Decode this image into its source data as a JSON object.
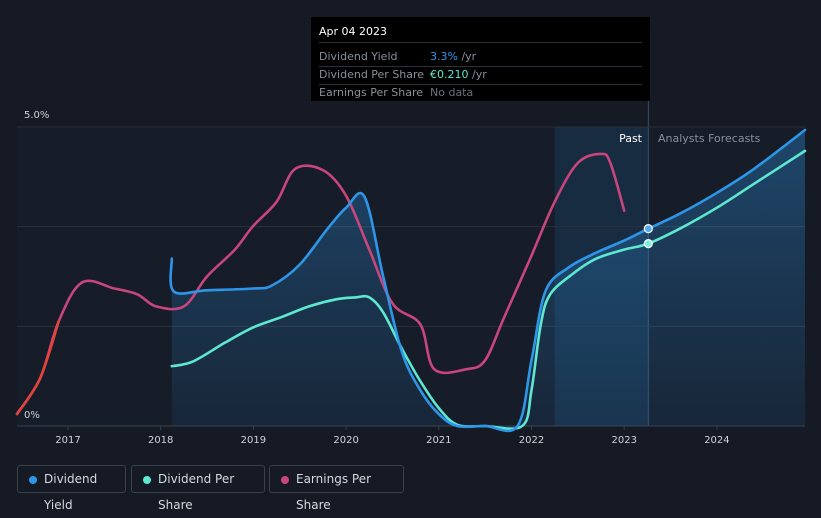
{
  "tooltip": {
    "date": "Apr 04 2023",
    "rows": [
      {
        "label": "Dividend Yield",
        "value": "3.3%",
        "unit": " /yr",
        "color": "#2e96e8"
      },
      {
        "label": "Dividend Per Share",
        "value": "€0.210",
        "unit": " /yr",
        "color": "#5ee8d0"
      },
      {
        "label": "Earnings Per Share",
        "value": "No data",
        "unit": "",
        "color": "#6a717c"
      }
    ]
  },
  "regions": {
    "past_label": "Past",
    "forecast_label": "Analysts Forecasts"
  },
  "legend": [
    {
      "label": "Dividend Yield",
      "color": "#2e96e8"
    },
    {
      "label": "Dividend Per Share",
      "color": "#5ee8d0"
    },
    {
      "label": "Earnings Per Share",
      "color": "#c8467c"
    }
  ],
  "chart_data": {
    "type": "line",
    "xlim": [
      2016.45,
      2024.95
    ],
    "ylim": [
      0,
      5
    ],
    "y_tick_labels": [
      "5.0%",
      "0%"
    ],
    "x_ticks": [
      2017,
      2018,
      2019,
      2020,
      2021,
      2022,
      2023,
      2024
    ],
    "x_tick_labels": [
      "2017",
      "2018",
      "2019",
      "2020",
      "2021",
      "2022",
      "2023",
      "2024"
    ],
    "past_region": [
      2022.25,
      2023.26
    ],
    "tooltip_x": 2023.26,
    "series": [
      {
        "name": "Dividend Yield",
        "color": "#2e96e8",
        "filled": true,
        "points": [
          [
            2018.12,
            2.8
          ],
          [
            2018.14,
            2.25
          ],
          [
            2018.5,
            2.27
          ],
          [
            2019.0,
            2.3
          ],
          [
            2019.2,
            2.35
          ],
          [
            2019.5,
            2.7
          ],
          [
            2019.8,
            3.3
          ],
          [
            2020.0,
            3.65
          ],
          [
            2020.2,
            3.83
          ],
          [
            2020.4,
            2.5
          ],
          [
            2020.6,
            1.25
          ],
          [
            2020.8,
            0.6
          ],
          [
            2021.0,
            0.2
          ],
          [
            2021.2,
            0.0
          ],
          [
            2021.5,
            0.0
          ],
          [
            2021.85,
            0.0
          ],
          [
            2022.0,
            1.1
          ],
          [
            2022.15,
            2.25
          ],
          [
            2022.4,
            2.65
          ],
          [
            2022.7,
            2.9
          ],
          [
            2023.0,
            3.1
          ],
          [
            2023.26,
            3.3
          ],
          [
            2023.6,
            3.55
          ],
          [
            2024.0,
            3.9
          ],
          [
            2024.4,
            4.3
          ],
          [
            2024.95,
            4.95
          ]
        ]
      },
      {
        "name": "Dividend Per Share",
        "color": "#5ee8d0",
        "filled": false,
        "points": [
          [
            2018.12,
            1.0
          ],
          [
            2018.35,
            1.08
          ],
          [
            2018.7,
            1.4
          ],
          [
            2019.0,
            1.65
          ],
          [
            2019.3,
            1.82
          ],
          [
            2019.6,
            2.0
          ],
          [
            2019.9,
            2.12
          ],
          [
            2020.1,
            2.15
          ],
          [
            2020.25,
            2.15
          ],
          [
            2020.4,
            1.9
          ],
          [
            2020.6,
            1.3
          ],
          [
            2020.8,
            0.75
          ],
          [
            2021.0,
            0.3
          ],
          [
            2021.2,
            0.02
          ],
          [
            2021.5,
            0.0
          ],
          [
            2021.9,
            0.0
          ],
          [
            2022.0,
            0.6
          ],
          [
            2022.1,
            1.7
          ],
          [
            2022.2,
            2.2
          ],
          [
            2022.45,
            2.55
          ],
          [
            2022.7,
            2.8
          ],
          [
            2023.0,
            2.95
          ],
          [
            2023.26,
            3.05
          ],
          [
            2023.6,
            3.3
          ],
          [
            2024.0,
            3.65
          ],
          [
            2024.4,
            4.05
          ],
          [
            2024.95,
            4.6
          ]
        ]
      },
      {
        "name": "Earnings Per Share",
        "color": "#c8467c",
        "filled": false,
        "points": [
          [
            2016.45,
            0.2
          ],
          [
            2016.7,
            0.8
          ],
          [
            2016.9,
            1.75
          ],
          [
            2017.15,
            2.4
          ],
          [
            2017.5,
            2.3
          ],
          [
            2017.75,
            2.2
          ],
          [
            2017.95,
            2.0
          ],
          [
            2018.25,
            2.0
          ],
          [
            2018.5,
            2.5
          ],
          [
            2018.8,
            2.95
          ],
          [
            2019.0,
            3.35
          ],
          [
            2019.25,
            3.75
          ],
          [
            2019.45,
            4.3
          ],
          [
            2019.75,
            4.28
          ],
          [
            2020.0,
            3.85
          ],
          [
            2020.25,
            2.95
          ],
          [
            2020.5,
            2.05
          ],
          [
            2020.8,
            1.7
          ],
          [
            2020.95,
            0.95
          ],
          [
            2021.3,
            0.95
          ],
          [
            2021.5,
            1.1
          ],
          [
            2021.7,
            1.8
          ],
          [
            2022.0,
            2.85
          ],
          [
            2022.25,
            3.75
          ],
          [
            2022.5,
            4.4
          ],
          [
            2022.75,
            4.55
          ],
          [
            2022.85,
            4.4
          ],
          [
            2023.0,
            3.6
          ]
        ]
      }
    ]
  }
}
